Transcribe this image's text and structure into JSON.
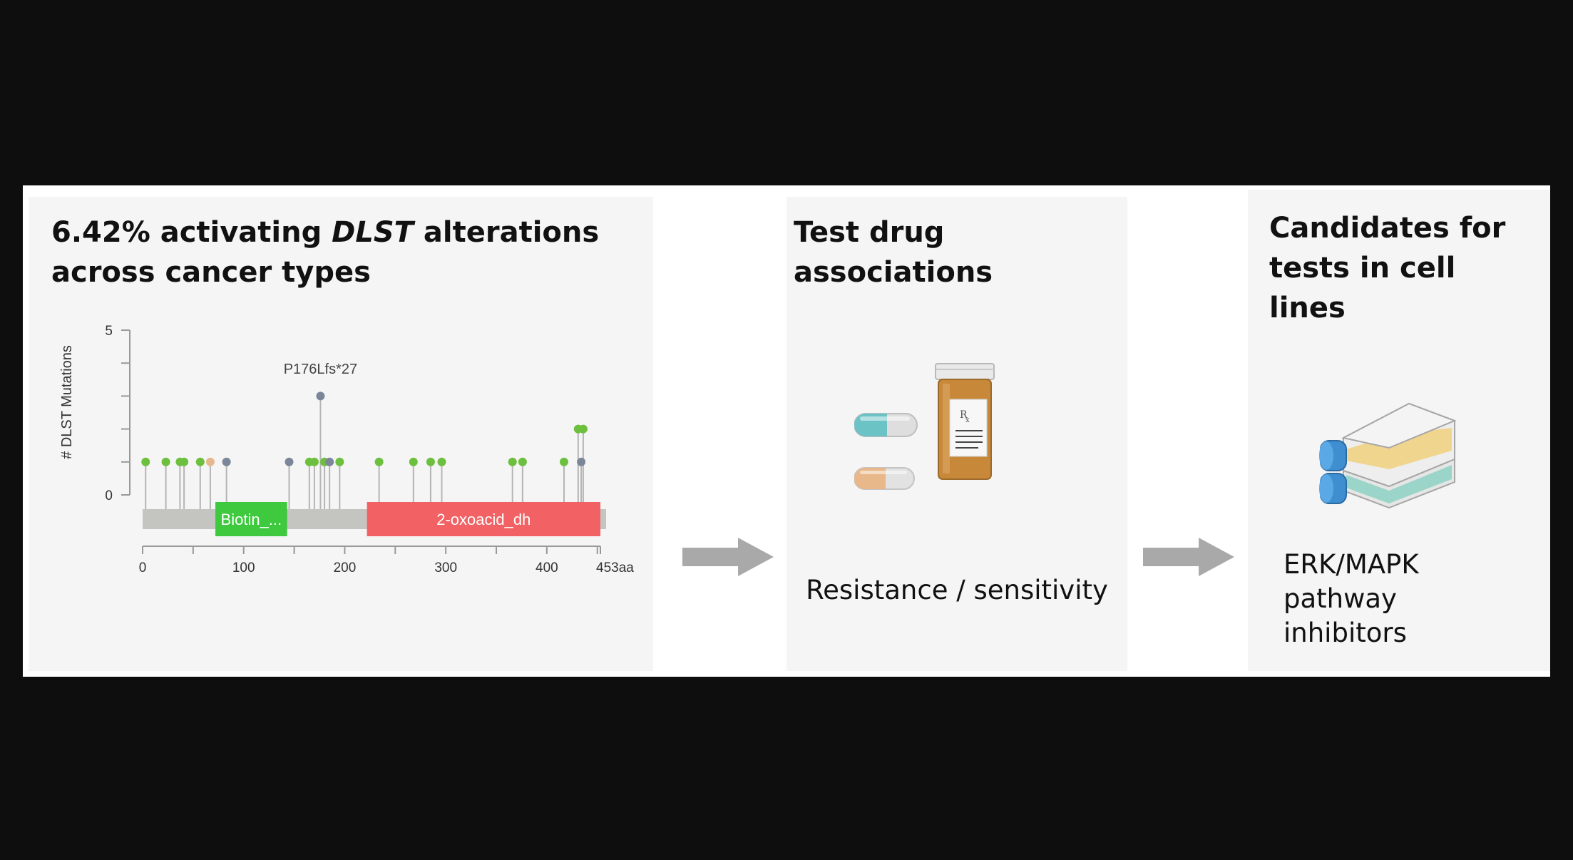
{
  "panel1": {
    "title_prefix": "6.42% activating ",
    "title_gene": "DLST",
    "title_suffix": " alterations",
    "title_line2": "across cancer types"
  },
  "panel2": {
    "title": "Test drug associations",
    "caption": "Resistance / sensitivity"
  },
  "panel3": {
    "title_line1": "Candidates for",
    "title_line2": "tests in cell lines",
    "caption_line1": "ERK/MAPK pathway",
    "caption_line2": "inhibitors"
  },
  "chart_data": {
    "type": "lollipop",
    "ylabel": "# DLST Mutations",
    "ylim": [
      0,
      5
    ],
    "y_ticks": [
      "0",
      "5"
    ],
    "x_ticks": [
      "0",
      "100",
      "200",
      "300",
      "400",
      "453aa"
    ],
    "x_tick_values": [
      0,
      100,
      200,
      300,
      400,
      453
    ],
    "protein_length": 453,
    "domains": [
      {
        "name": "Biotin_...",
        "start": 72,
        "end": 143,
        "color": "#3ec93e"
      },
      {
        "name": "2-oxoacid_dh",
        "start": 222,
        "end": 453,
        "color": "#f26163"
      }
    ],
    "annotation": "P176Lfs*27",
    "mutations": [
      {
        "pos": 3,
        "count": 1,
        "color": "#6dbf3e"
      },
      {
        "pos": 23,
        "count": 1,
        "color": "#6dbf3e"
      },
      {
        "pos": 37,
        "count": 1,
        "color": "#6dbf3e"
      },
      {
        "pos": 41,
        "count": 1,
        "color": "#6dbf3e"
      },
      {
        "pos": 57,
        "count": 1,
        "color": "#6dbf3e"
      },
      {
        "pos": 67,
        "count": 1,
        "color": "#e7b88f"
      },
      {
        "pos": 83,
        "count": 1,
        "color": "#7b8799"
      },
      {
        "pos": 145,
        "count": 1,
        "color": "#7b8799"
      },
      {
        "pos": 165,
        "count": 1,
        "color": "#6dbf3e"
      },
      {
        "pos": 170,
        "count": 1,
        "color": "#6dbf3e"
      },
      {
        "pos": 176,
        "count": 3,
        "color": "#7b8799"
      },
      {
        "pos": 180,
        "count": 1,
        "color": "#6dbf3e"
      },
      {
        "pos": 185,
        "count": 1,
        "color": "#7b8799"
      },
      {
        "pos": 195,
        "count": 1,
        "color": "#6dbf3e"
      },
      {
        "pos": 234,
        "count": 1,
        "color": "#6dbf3e"
      },
      {
        "pos": 268,
        "count": 1,
        "color": "#6dbf3e"
      },
      {
        "pos": 285,
        "count": 1,
        "color": "#6dbf3e"
      },
      {
        "pos": 296,
        "count": 1,
        "color": "#6dbf3e"
      },
      {
        "pos": 366,
        "count": 1,
        "color": "#6dbf3e"
      },
      {
        "pos": 376,
        "count": 1,
        "color": "#6dbf3e"
      },
      {
        "pos": 417,
        "count": 1,
        "color": "#6dbf3e"
      },
      {
        "pos": 431,
        "count": 2,
        "color": "#6dbf3e"
      },
      {
        "pos": 434,
        "count": 1,
        "color": "#7b8799"
      },
      {
        "pos": 436,
        "count": 2,
        "color": "#6dbf3e"
      }
    ]
  }
}
